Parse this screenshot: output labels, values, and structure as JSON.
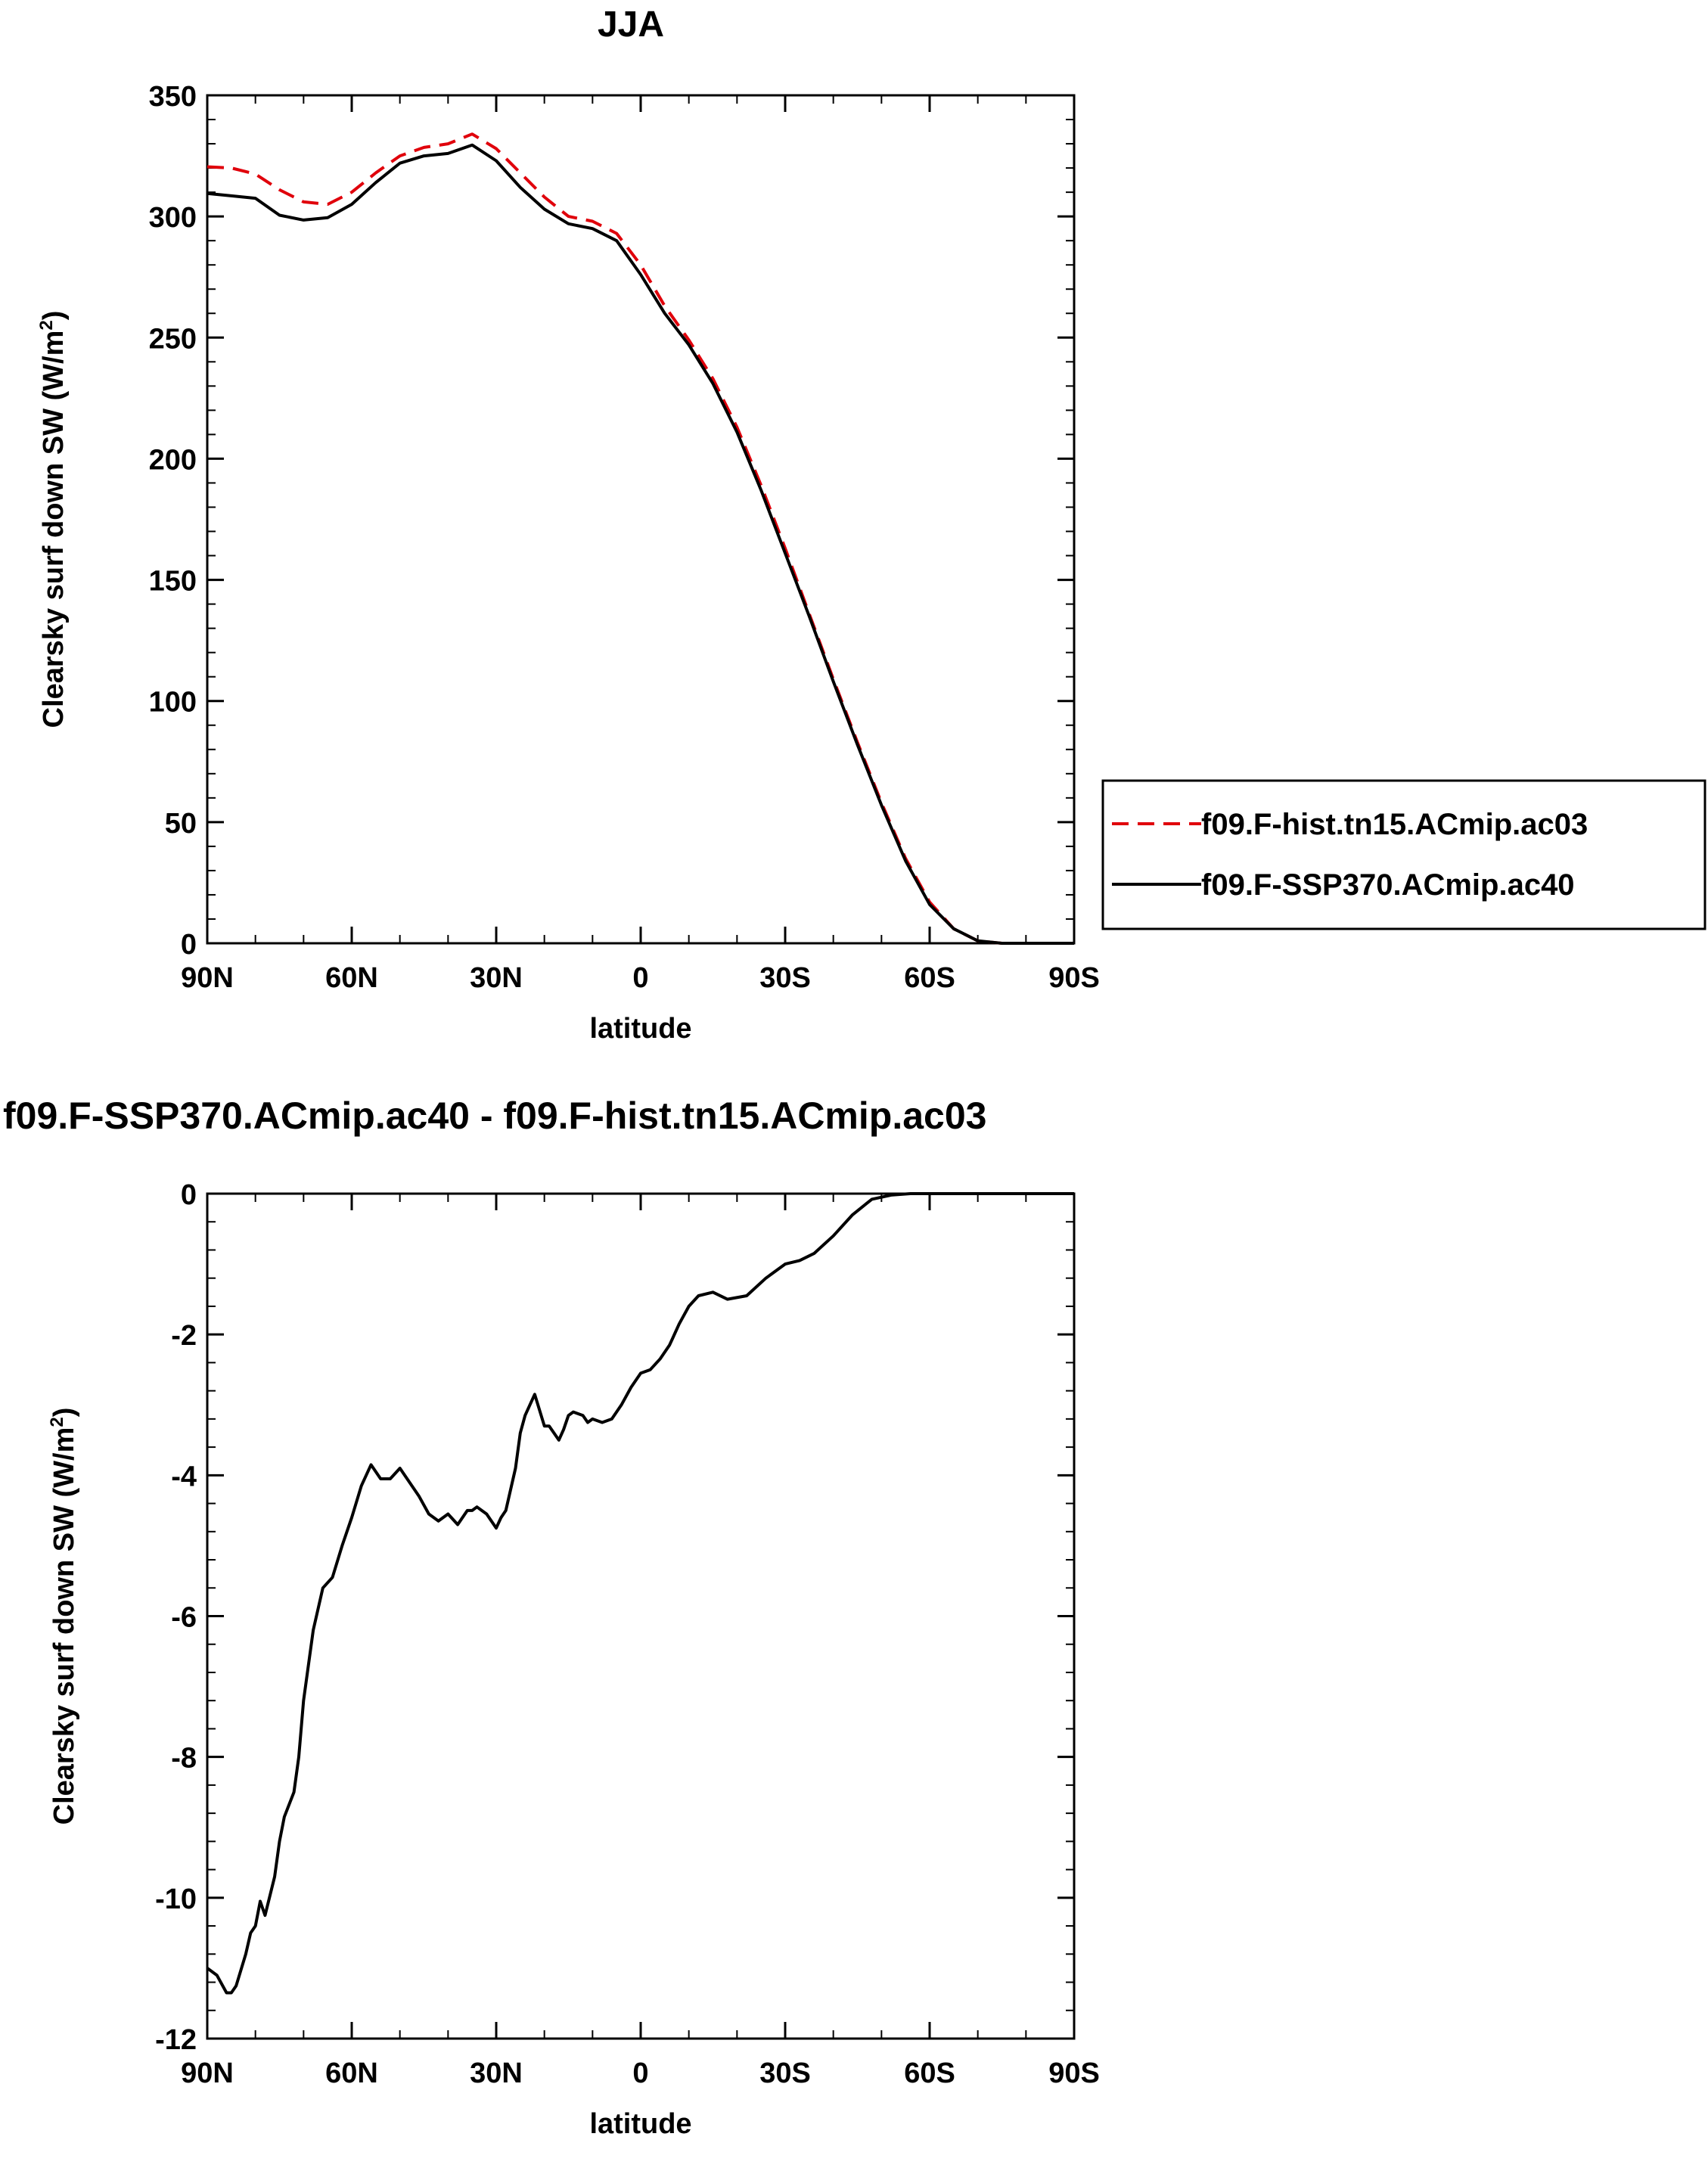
{
  "chart_data": [
    {
      "type": "line",
      "title": "JJA",
      "xlabel": "latitude",
      "ylabel_main": "Clearsky surf down SW (W/m",
      "ylabel_sup": "2",
      "ylabel_close": ")",
      "xlim": [
        90,
        -90
      ],
      "ylim": [
        0,
        350
      ],
      "x_ticks": [
        90,
        60,
        30,
        0,
        -30,
        -60,
        -90
      ],
      "x_tick_labels": [
        "90N",
        "60N",
        "30N",
        "0",
        "30S",
        "60S",
        "90S"
      ],
      "y_ticks": [
        0,
        50,
        100,
        150,
        200,
        250,
        300,
        350
      ],
      "y_tick_labels": [
        "0",
        "50",
        "100",
        "150",
        "200",
        "250",
        "300",
        "350"
      ],
      "legend": {
        "placement": "right-middle",
        "entries": [
          {
            "label": "f09.F-hist.tn15.ACmip.ac03",
            "color": "#e0000b",
            "dash": "dashed"
          },
          {
            "label": "f09.F-SSP370.ACmip.ac40",
            "color": "#000000",
            "dash": "solid"
          }
        ]
      },
      "x": [
        90,
        85,
        80,
        75,
        70,
        65,
        60,
        55,
        50,
        45,
        40,
        35,
        30,
        25,
        20,
        15,
        10,
        5,
        0,
        -5,
        -10,
        -15,
        -20,
        -25,
        -30,
        -35,
        -40,
        -45,
        -50,
        -55,
        -60,
        -65,
        -70,
        -75,
        -80,
        -85,
        -90
      ],
      "series": [
        {
          "name": "f09.F-hist.tn15.ACmip.ac03",
          "color": "#e0000b",
          "dash": "dashed",
          "values": [
            320.5,
            320,
            317.5,
            311,
            306,
            305,
            310,
            318,
            325,
            328.5,
            330,
            334,
            328,
            318,
            308,
            300,
            298,
            293,
            280,
            263,
            249,
            233,
            213,
            189,
            163,
            136,
            109,
            83,
            58,
            35,
            17,
            6,
            1,
            0,
            0,
            0,
            0
          ]
        },
        {
          "name": "f09.F-SSP370.ACmip.ac40",
          "color": "#000000",
          "dash": "solid",
          "values": [
            309.5,
            308.5,
            307.5,
            300.5,
            298.5,
            299.5,
            305,
            314,
            322,
            325,
            326,
            329.5,
            323,
            312,
            303,
            297,
            295,
            290,
            276,
            260,
            247,
            231,
            211,
            187,
            161,
            135,
            108,
            82,
            57,
            34,
            16,
            6,
            1,
            0,
            0,
            0,
            0
          ]
        }
      ]
    },
    {
      "type": "line",
      "title": "f09.F-SSP370.ACmip.ac40 - f09.F-hist.tn15.ACmip.ac03",
      "xlabel": "latitude",
      "ylabel_main": "Clearsky surf down SW (W/m",
      "ylabel_sup": "2",
      "ylabel_close": ")",
      "xlim": [
        90,
        -90
      ],
      "ylim": [
        -12,
        0
      ],
      "x_ticks": [
        90,
        60,
        30,
        0,
        -30,
        -60,
        -90
      ],
      "x_tick_labels": [
        "90N",
        "60N",
        "30N",
        "0",
        "30S",
        "60S",
        "90S"
      ],
      "y_ticks": [
        -12,
        -10,
        -8,
        -6,
        -4,
        -2,
        0
      ],
      "y_tick_labels": [
        "-12",
        "-10",
        "-8",
        "-6",
        "-4",
        "-2",
        "0"
      ],
      "x": [
        90,
        88,
        86,
        85,
        84,
        82,
        81,
        80,
        79,
        78,
        76,
        75,
        74,
        72,
        71,
        70,
        68,
        66,
        64,
        62,
        60,
        58,
        56,
        54,
        52,
        50,
        48,
        46,
        44,
        42,
        40,
        38,
        36,
        35,
        34,
        33,
        32,
        31,
        30,
        29,
        28,
        26,
        25,
        24,
        22,
        20,
        19,
        18,
        17,
        16,
        15,
        14,
        12,
        11,
        10,
        8,
        6,
        4,
        2,
        0,
        -2,
        -4,
        -6,
        -8,
        -10,
        -12,
        -15,
        -18,
        -22,
        -26,
        -30,
        -33,
        -36,
        -40,
        -44,
        -48,
        -52,
        -56,
        -58,
        -60,
        -62,
        -64,
        -66,
        -68,
        -70,
        -72,
        -75,
        -80,
        -85,
        -90
      ],
      "series": [
        {
          "name": "f09.F-SSP370.ACmip.ac40 - f09.F-hist.tn15.ACmip.ac03",
          "color": "#000000",
          "dash": "solid",
          "values": [
            -11.0,
            -11.1,
            -11.35,
            -11.35,
            -11.25,
            -10.8,
            -10.5,
            -10.4,
            -10.05,
            -10.25,
            -9.7,
            -9.2,
            -8.85,
            -8.5,
            -8.0,
            -7.2,
            -6.2,
            -5.6,
            -5.45,
            -5.0,
            -4.6,
            -4.15,
            -3.85,
            -4.05,
            -4.05,
            -3.9,
            -4.1,
            -4.3,
            -4.55,
            -4.65,
            -4.55,
            -4.7,
            -4.5,
            -4.5,
            -4.45,
            -4.5,
            -4.55,
            -4.65,
            -4.75,
            -4.6,
            -4.5,
            -3.9,
            -3.4,
            -3.15,
            -2.85,
            -3.3,
            -3.3,
            -3.4,
            -3.5,
            -3.35,
            -3.15,
            -3.1,
            -3.15,
            -3.25,
            -3.2,
            -3.25,
            -3.2,
            -3.0,
            -2.75,
            -2.55,
            -2.5,
            -2.35,
            -2.15,
            -1.85,
            -1.6,
            -1.45,
            -1.4,
            -1.5,
            -1.45,
            -1.2,
            -1.0,
            -0.95,
            -0.85,
            -0.6,
            -0.3,
            -0.08,
            -0.02,
            0,
            0,
            0,
            0,
            0,
            0,
            0,
            0,
            0,
            0,
            0,
            0,
            0
          ]
        }
      ]
    }
  ]
}
